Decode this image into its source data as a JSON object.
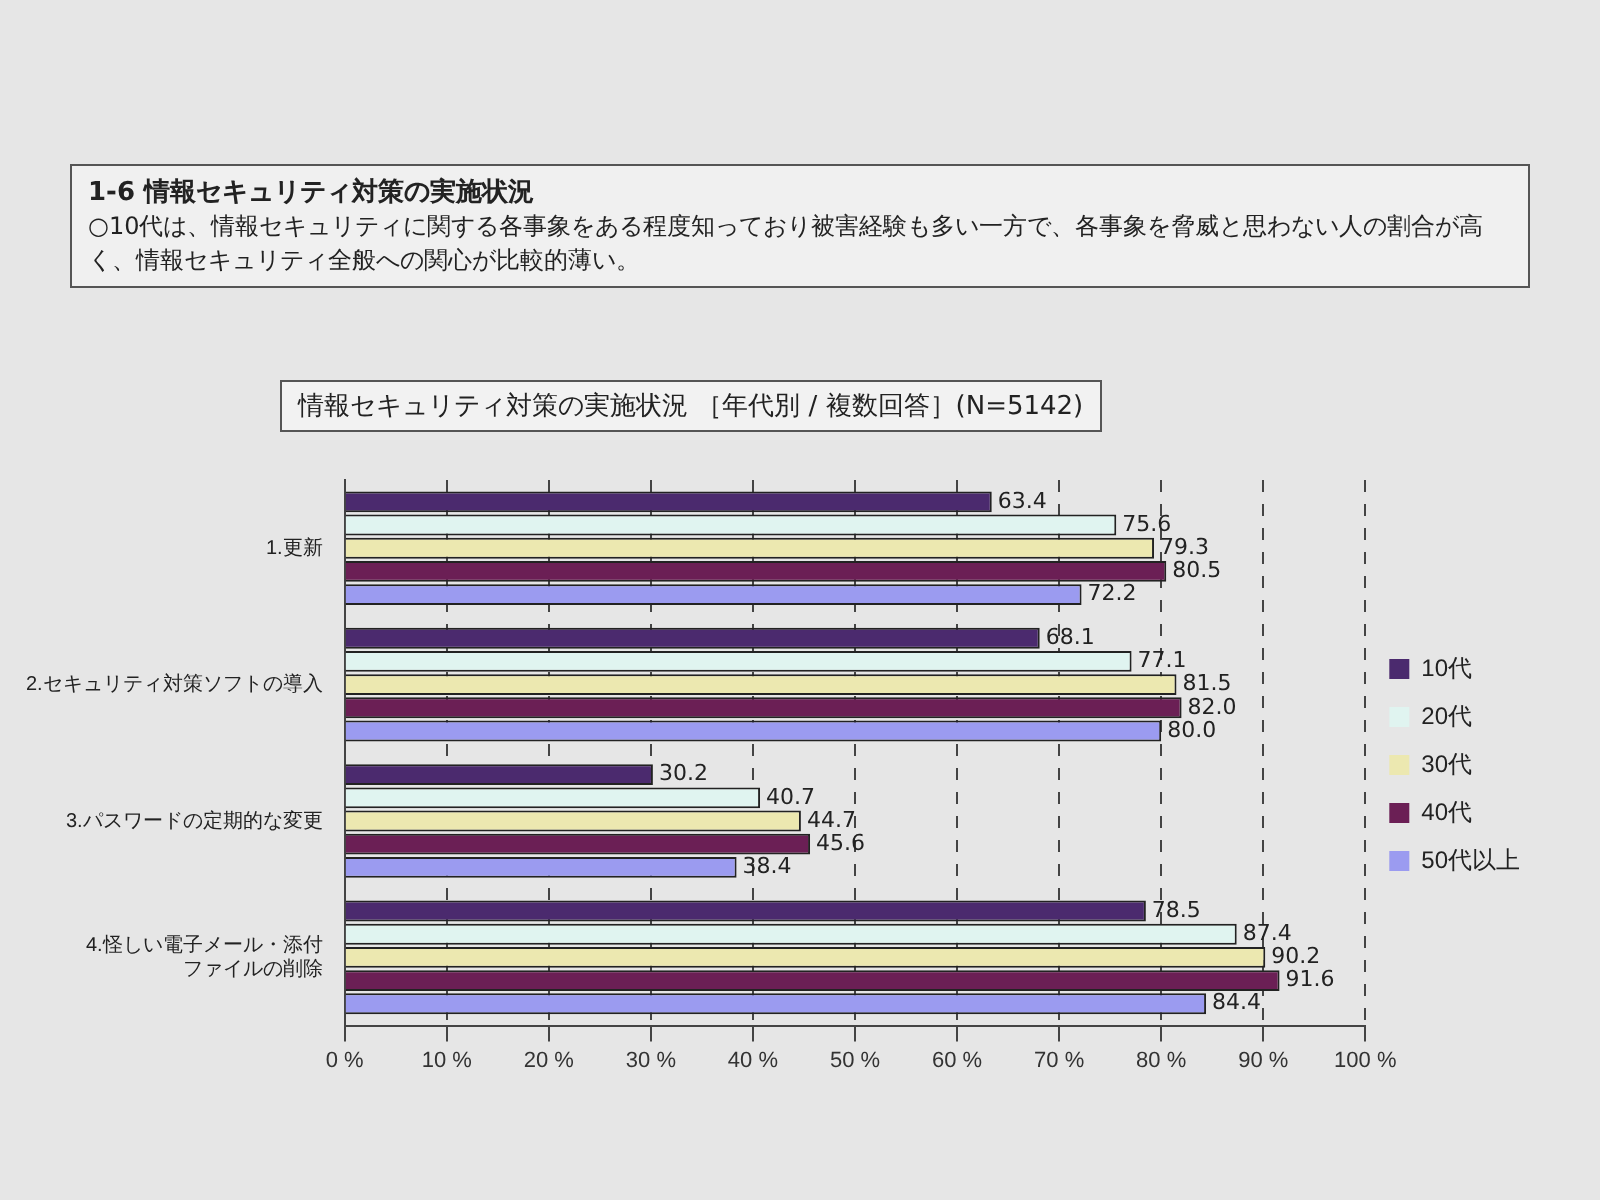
{
  "chart_data": {
    "type": "bar",
    "orientation": "horizontal",
    "title": "1-6 情報セキュリティ対策の実施状況",
    "subtitle": "○10代は、情報セキュリティに関する各事象をある程度知っており被害経験も多い一方で、各事象を脅威と思わない人の割合が高く、情報セキュリティ全般への関心が比較的薄い。",
    "annotations": [
      "情報セキュリティ対策の実施状況 ［年代別 / 複数回答］(N=5142)"
    ],
    "categories": [
      "1.更新",
      "2.セキュリティ対策ソフトの導入",
      "3.パスワードの定期的な変更",
      "4.怪しい電子メール・添付ファイルの削除"
    ],
    "series": [
      {
        "name": "10代",
        "color": "#4b2a6e",
        "values": [
          63.4,
          68.1,
          30.2,
          78.5
        ],
        "value_labels": [
          "63.4",
          "68.1",
          "30.2",
          "78.5"
        ]
      },
      {
        "name": "20代",
        "color": "#e0f4f0",
        "values": [
          75.6,
          77.1,
          40.7,
          87.4
        ],
        "value_labels": [
          "75.6",
          "77.1",
          "40.7",
          "87.4"
        ]
      },
      {
        "name": "30代",
        "color": "#ece8b0",
        "values": [
          79.3,
          81.5,
          44.7,
          90.2
        ],
        "value_labels": [
          "79.3",
          "81.5",
          "44.7",
          "90.2"
        ]
      },
      {
        "name": "40代",
        "color": "#6b1f55",
        "values": [
          80.5,
          82.0,
          45.6,
          91.6
        ],
        "value_labels": [
          "80.5",
          "82.0",
          "45.6",
          "91.6"
        ]
      },
      {
        "name": "50代以上",
        "color": "#9b9bf0",
        "values": [
          72.2,
          80.0,
          38.4,
          84.4
        ],
        "value_labels": [
          "72.2",
          "80.0",
          "38.4",
          "84.4"
        ]
      }
    ],
    "xlim": [
      0,
      100
    ],
    "xticks": [
      {
        "value": 0,
        "label": "0 %"
      },
      {
        "value": 10,
        "label": "10 %"
      },
      {
        "value": 20,
        "label": "20 %"
      },
      {
        "value": 30,
        "label": "30 %"
      },
      {
        "value": 40,
        "label": "40 %"
      },
      {
        "value": 50,
        "label": "50 %"
      },
      {
        "value": 60,
        "label": "60 %"
      },
      {
        "value": 70,
        "label": "70 %"
      },
      {
        "value": 80,
        "label": "80 %"
      },
      {
        "value": 90,
        "label": "90 %"
      },
      {
        "value": 100,
        "label": "100 %"
      }
    ],
    "grid": "x",
    "line_style": "dashed",
    "legend": "right"
  }
}
